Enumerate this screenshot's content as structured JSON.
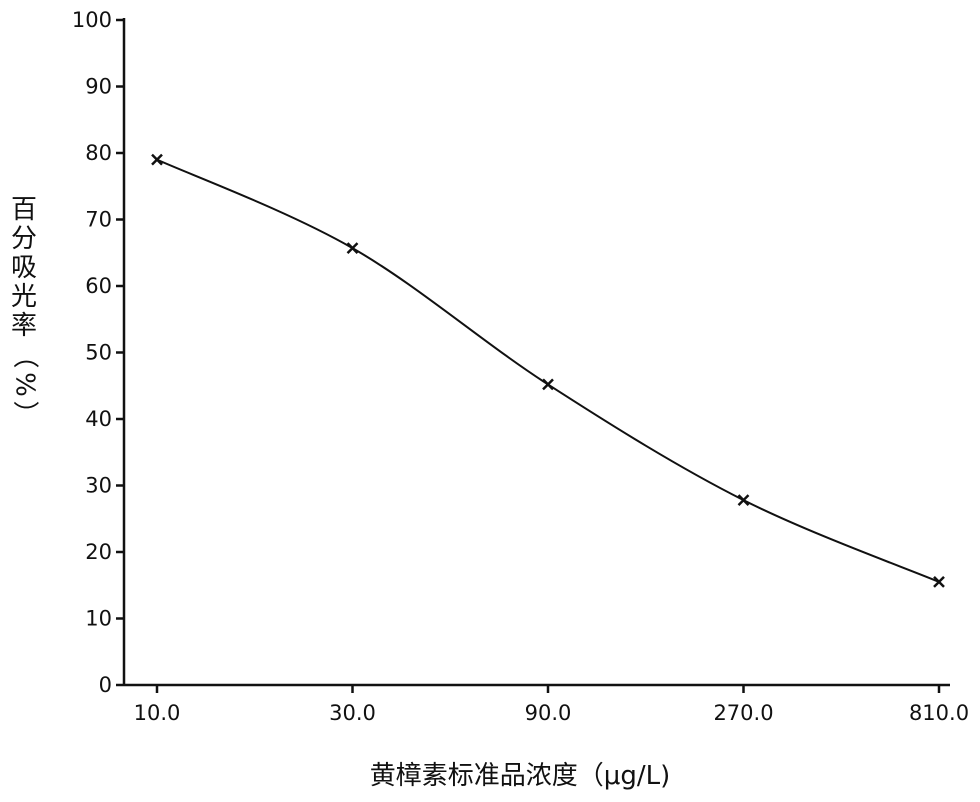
{
  "chart_data": {
    "type": "line",
    "x": [
      "10.0",
      "30.0",
      "90.0",
      "270.0",
      "810.0"
    ],
    "x_scale": "log",
    "series": [
      {
        "values": [
          79.0,
          65.7,
          45.2,
          27.8,
          15.5
        ],
        "marker": "x",
        "smooth": true
      }
    ],
    "xlabel": "黄樟素标准品浓度（μg/L)",
    "ylabel": "百分吸光率（%）",
    "ylim": [
      0,
      100
    ],
    "yticks": [
      "0",
      "10",
      "20",
      "30",
      "40",
      "50",
      "60",
      "70",
      "80",
      "90",
      "100"
    ],
    "grid": false,
    "line_color": "#111111"
  }
}
